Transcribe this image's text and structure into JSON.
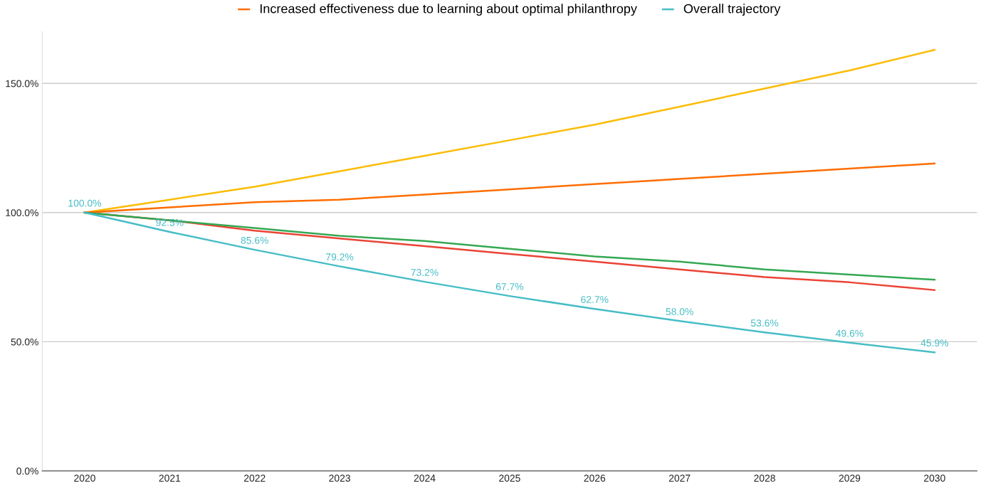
{
  "chart_data": {
    "type": "line",
    "categories": [
      "2020",
      "2021",
      "2022",
      "2023",
      "2024",
      "2025",
      "2026",
      "2027",
      "2028",
      "2029",
      "2030"
    ],
    "series": [
      {
        "color": "#fbbc04",
        "values": [
          100,
          105,
          110,
          116,
          122,
          128,
          134,
          141,
          148,
          155,
          163
        ]
      },
      {
        "name": "Increased effectiveness due to learning about optimal philanthropy",
        "color": "#ff6d01",
        "values": [
          100,
          102,
          104,
          105,
          107,
          109,
          111,
          113,
          115,
          117,
          119
        ]
      },
      {
        "color": "#ea4335",
        "values": [
          100,
          97,
          93,
          90,
          87,
          84,
          81,
          78,
          75,
          73,
          70
        ]
      },
      {
        "color": "#34a853",
        "values": [
          100,
          97,
          94,
          91,
          89,
          86,
          83,
          81,
          78,
          76,
          74
        ]
      },
      {
        "name": "Overall trajectory",
        "color": "#46bdc6",
        "values": [
          100,
          92.5,
          85.6,
          79.2,
          73.2,
          67.7,
          62.7,
          58.0,
          53.6,
          49.6,
          45.9
        ],
        "value_labels": [
          "100.0%",
          "92.5%",
          "85.6%",
          "79.2%",
          "73.2%",
          "67.7%",
          "62.7%",
          "58.0%",
          "53.6%",
          "49.6%",
          "45.9%"
        ]
      }
    ],
    "ylim": [
      0,
      170
    ],
    "yticks": [
      {
        "value": 0,
        "label": "0.0%"
      },
      {
        "value": 50,
        "label": "50.0%"
      },
      {
        "value": 100,
        "label": "100.0%"
      },
      {
        "value": 150,
        "label": "150.0%"
      }
    ],
    "grid": "y",
    "legend": "top",
    "marker": "none",
    "line_style": "solid"
  }
}
